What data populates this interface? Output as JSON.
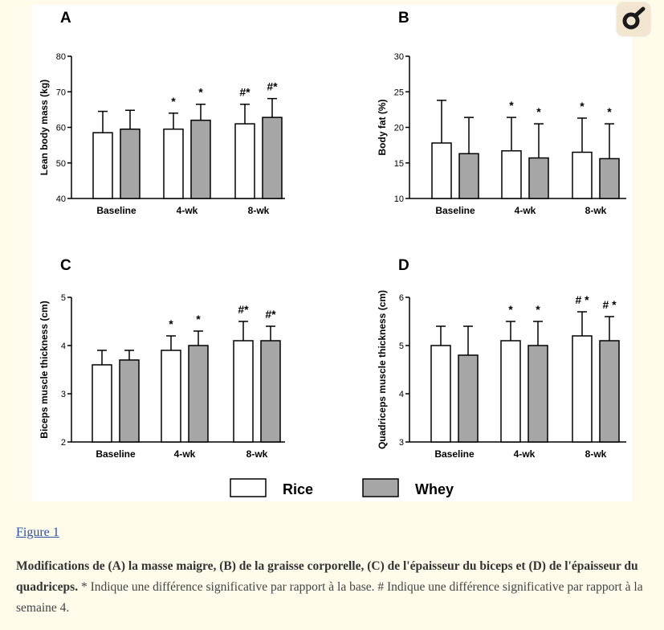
{
  "chart_data": [
    {
      "type": "bar",
      "panel": "A",
      "categories": [
        "Baseline",
        "4-wk",
        "8-wk"
      ],
      "ylabel": "Lean body mass (kg)",
      "ylim": [
        40,
        80
      ],
      "yticks": [
        40,
        50,
        60,
        70,
        80
      ],
      "series": [
        {
          "name": "Rice",
          "values": [
            58.5,
            59.5,
            61.0
          ],
          "errors": [
            6.0,
            4.5,
            5.5
          ]
        },
        {
          "name": "Whey",
          "values": [
            59.5,
            62.0,
            62.8
          ],
          "errors": [
            5.3,
            4.5,
            5.3
          ]
        }
      ],
      "annotations": [
        [
          "",
          "*",
          "#*"
        ],
        [
          "",
          "*",
          "#*"
        ]
      ]
    },
    {
      "type": "bar",
      "panel": "B",
      "categories": [
        "Baseline",
        "4-wk",
        "8-wk"
      ],
      "ylabel": "Body fat (%)",
      "ylim": [
        10,
        30
      ],
      "yticks": [
        10,
        15,
        20,
        25,
        30
      ],
      "series": [
        {
          "name": "Rice",
          "values": [
            17.8,
            16.7,
            16.5
          ],
          "errors": [
            6.0,
            4.7,
            4.8
          ]
        },
        {
          "name": "Whey",
          "values": [
            16.3,
            15.7,
            15.6
          ],
          "errors": [
            5.1,
            4.8,
            4.9
          ]
        }
      ],
      "annotations": [
        [
          "",
          "*",
          "*"
        ],
        [
          "",
          "*",
          "*"
        ]
      ]
    },
    {
      "type": "bar",
      "panel": "C",
      "categories": [
        "Baseline",
        "4-wk",
        "8-wk"
      ],
      "ylabel": "Biceps muscle thickness (cm)",
      "ylim": [
        2,
        5
      ],
      "yticks": [
        2,
        3,
        4,
        5
      ],
      "series": [
        {
          "name": "Rice",
          "values": [
            3.6,
            3.9,
            4.1
          ],
          "errors": [
            0.3,
            0.3,
            0.4
          ]
        },
        {
          "name": "Whey",
          "values": [
            3.7,
            4.0,
            4.1
          ],
          "errors": [
            0.2,
            0.3,
            0.3
          ]
        }
      ],
      "annotations": [
        [
          "",
          "*",
          "#*"
        ],
        [
          "",
          "*",
          "#*"
        ]
      ]
    },
    {
      "type": "bar",
      "panel": "D",
      "categories": [
        "Baseline",
        "4-wk",
        "8-wk"
      ],
      "ylabel": "Quadriceps muscle thickness (cm)",
      "ylim": [
        3,
        6
      ],
      "yticks": [
        3,
        4,
        5,
        6
      ],
      "series": [
        {
          "name": "Rice",
          "values": [
            5.0,
            5.1,
            5.2
          ],
          "errors": [
            0.4,
            0.4,
            0.5
          ]
        },
        {
          "name": "Whey",
          "values": [
            4.8,
            5.0,
            5.1
          ],
          "errors": [
            0.6,
            0.5,
            0.5
          ]
        }
      ],
      "annotations": [
        [
          "",
          "*",
          "# *"
        ],
        [
          "",
          "*",
          "# *"
        ]
      ]
    }
  ],
  "legend": [
    {
      "name": "Rice",
      "color": "#ffffff"
    },
    {
      "name": "Whey",
      "color": "#a6a6a6"
    }
  ],
  "colors": {
    "rice": "#ffffff",
    "whey": "#a6a6a6",
    "panel_bg": "#ffffff",
    "page_bg": "#fefbea"
  },
  "zoom_icon": "magnify-icon",
  "caption": {
    "figure_link": "Figure 1",
    "bold": "Modifications de (A) la masse maigre, (B) de la graisse corporelle, (C) de l'épaisseur du biceps et (D) de l'épaisseur du quadriceps.",
    "text": " * Indique une différence significative par rapport à la base. # Indique une différence significative par rapport à la semaine 4."
  }
}
